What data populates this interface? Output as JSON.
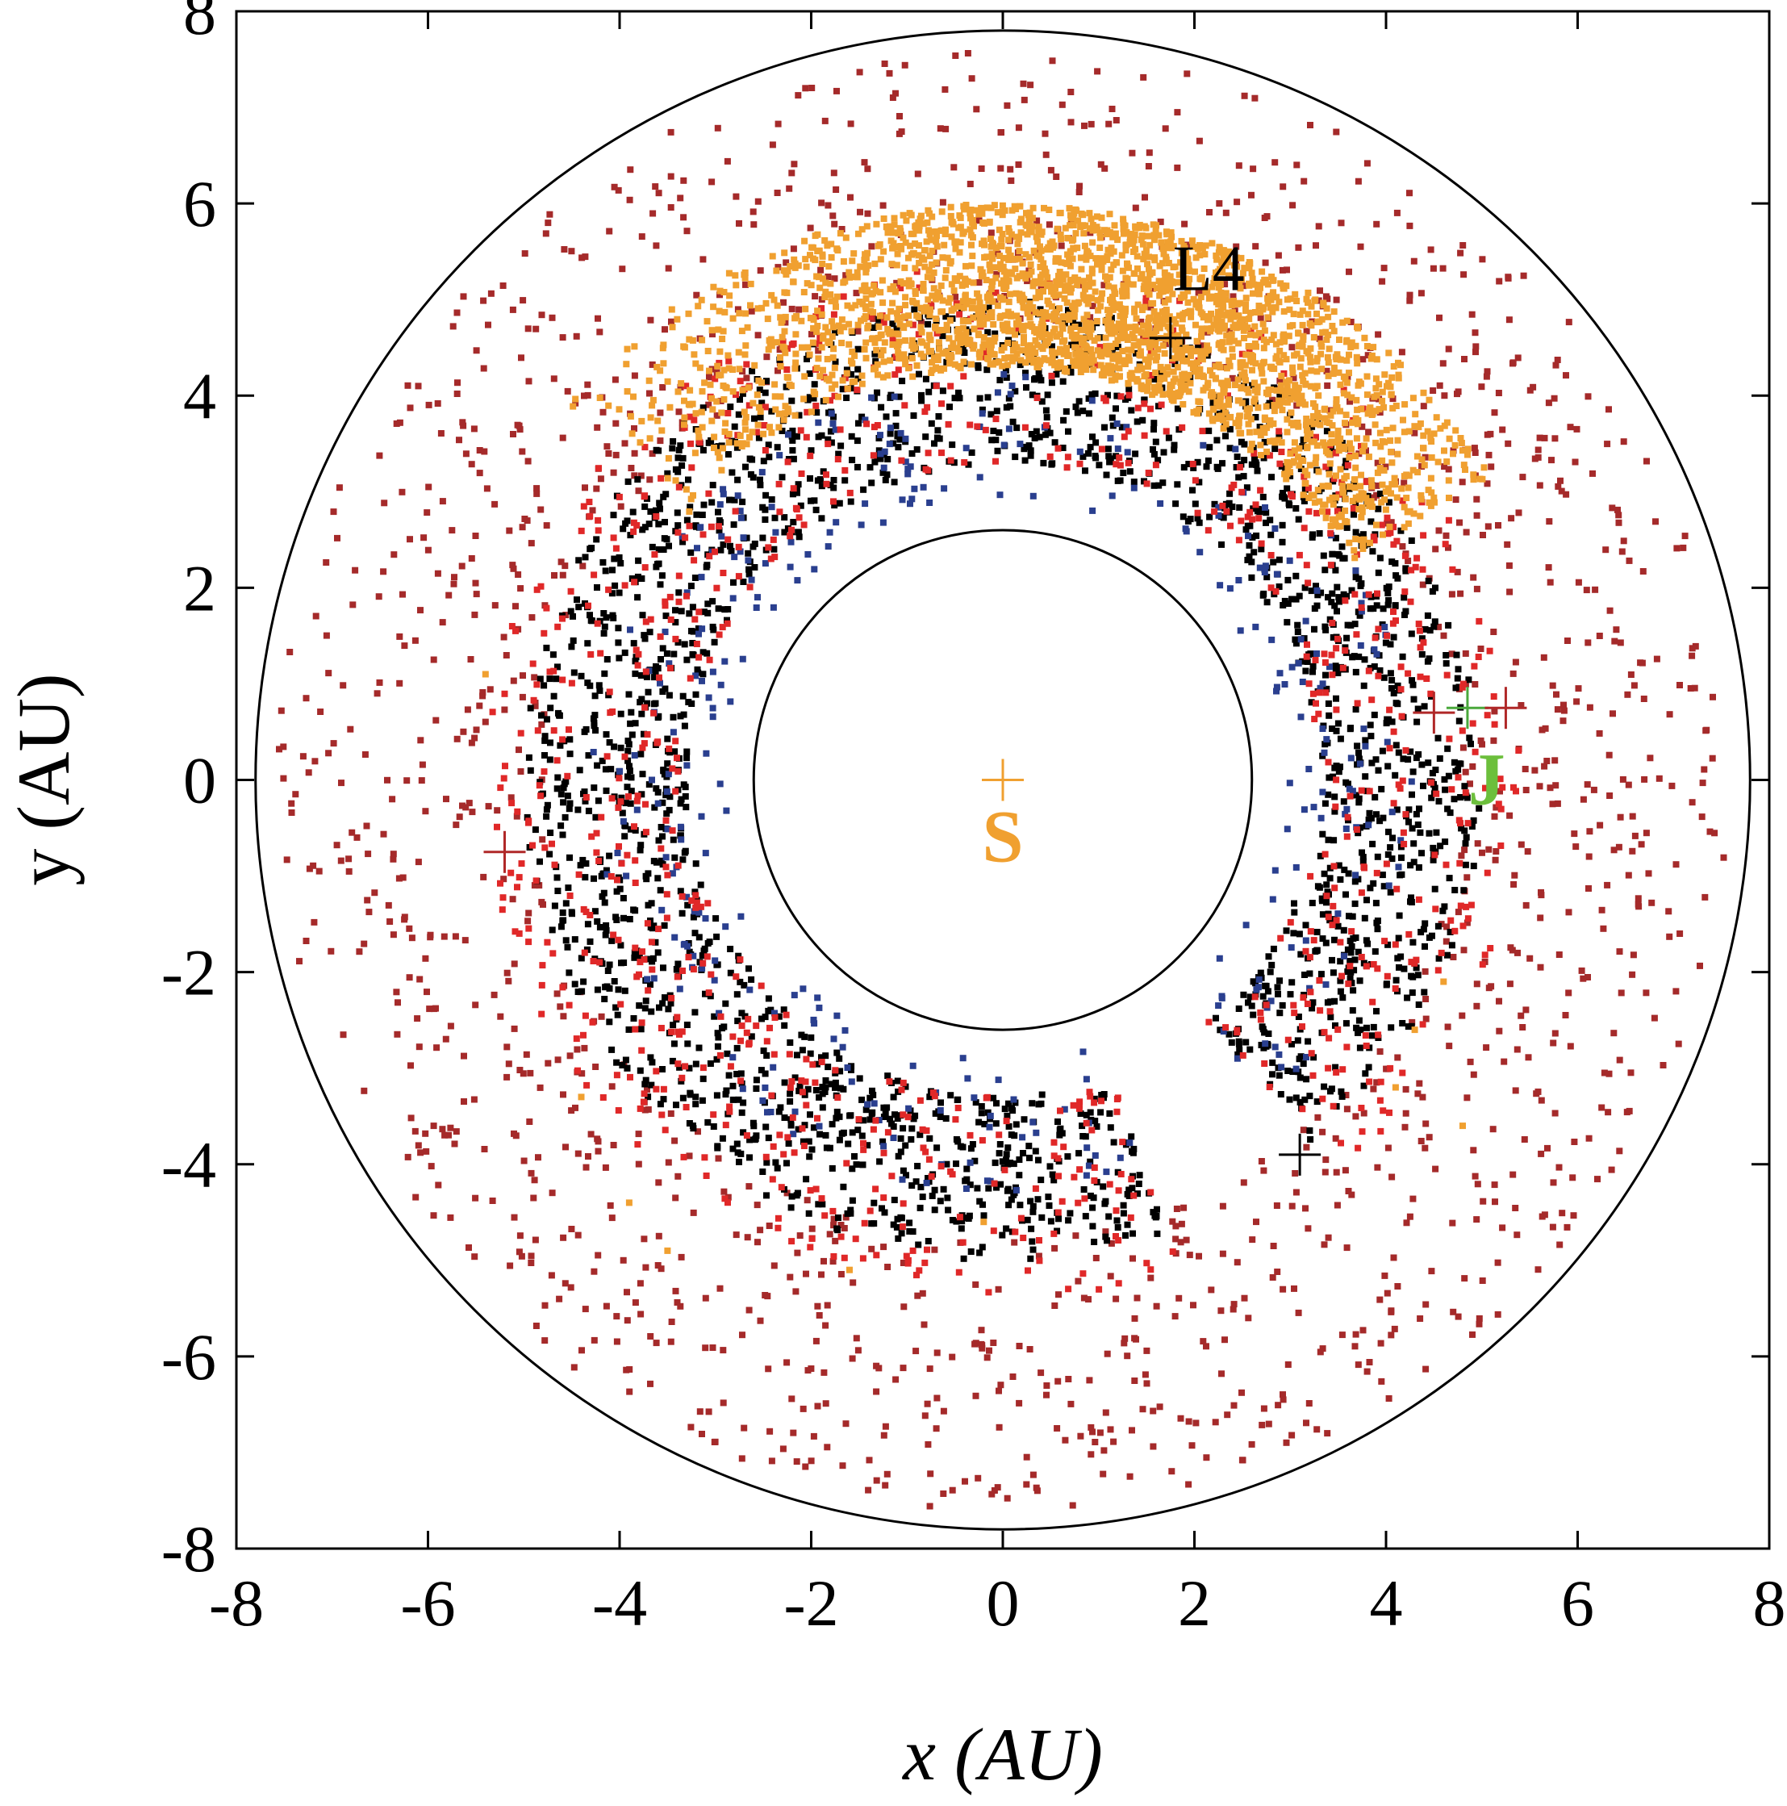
{
  "chart_data": {
    "type": "scatter",
    "title": "",
    "xlabel": "x (AU)",
    "ylabel": "y (AU)",
    "xlim": [
      -8,
      8
    ],
    "ylim": [
      -8,
      8
    ],
    "xticks": [
      -8,
      -6,
      -4,
      -2,
      0,
      2,
      4,
      6,
      8
    ],
    "yticks": [
      -8,
      -6,
      -4,
      -2,
      0,
      2,
      4,
      6,
      8
    ],
    "grid": false,
    "legend": "none",
    "reference_circles": [
      {
        "radius": 2.6,
        "color": "#000000"
      },
      {
        "radius": 7.8,
        "color": "#000000"
      }
    ],
    "annotations": [
      {
        "text": "S",
        "x": 0.0,
        "y": -0.85,
        "color": "#f0a030"
      },
      {
        "text": "J",
        "x": 5.05,
        "y": -0.25,
        "color": "#6cbf3c"
      },
      {
        "text": "L4",
        "x": 2.15,
        "y": 5.1,
        "color": "#000000"
      }
    ],
    "markers": [
      {
        "kind": "plus",
        "x": 0.0,
        "y": 0.0,
        "color": "#f0a030"
      },
      {
        "kind": "plus",
        "x": 4.85,
        "y": 0.75,
        "color": "#4aa83c"
      },
      {
        "kind": "plus",
        "x": 4.5,
        "y": 0.7,
        "color": "#b02828"
      },
      {
        "kind": "plus",
        "x": 5.25,
        "y": 0.75,
        "color": "#b02828"
      },
      {
        "kind": "plus",
        "x": -5.2,
        "y": -0.75,
        "color": "#b02828"
      },
      {
        "kind": "plus",
        "x": 1.75,
        "y": 4.6,
        "color": "#000000"
      },
      {
        "kind": "plus",
        "x": 3.1,
        "y": -3.9,
        "color": "#000000"
      }
    ],
    "series": [
      {
        "color": "#f0a030",
        "distribution": {
          "kind": "arc",
          "count": 2600,
          "r_min": 4.3,
          "r_max": 6.0,
          "theta_min_deg": 32,
          "theta_max_deg": 140,
          "theta_peak_deg": 75
        }
      },
      {
        "color": "#000000",
        "distribution": {
          "kind": "ring",
          "count": 2200,
          "r_min": 3.3,
          "r_max": 5.0,
          "theta_min_deg": -50,
          "theta_max_deg": 290
        }
      },
      {
        "color": "#2a3f8f",
        "distribution": {
          "kind": "ring",
          "count": 320,
          "r_min": 2.9,
          "r_max": 4.3,
          "theta_min_deg": -50,
          "theta_max_deg": 290
        }
      },
      {
        "color": "#e02828",
        "distribution": {
          "kind": "ring",
          "count": 900,
          "r_min": 3.3,
          "r_max": 5.4,
          "theta_min_deg": -50,
          "theta_max_deg": 290
        }
      },
      {
        "color": "#a52a2a",
        "distribution": {
          "kind": "ring",
          "count": 1500,
          "r_min": 4.8,
          "r_max": 7.6,
          "theta_min_deg": -180,
          "theta_max_deg": 180
        }
      },
      {
        "color": "#f0a030",
        "distribution": {
          "kind": "scatter",
          "points": [
            [
              -5.4,
              1.1
            ],
            [
              -4.4,
              -3.3
            ],
            [
              -3.9,
              -4.4
            ],
            [
              -3.5,
              -4.9
            ],
            [
              -1.6,
              -5.1
            ],
            [
              4.6,
              -2.1
            ],
            [
              4.1,
              -3.2
            ],
            [
              4.8,
              -3.6
            ],
            [
              4.3,
              -2.6
            ],
            [
              -0.2,
              -4.6
            ]
          ]
        }
      }
    ]
  }
}
